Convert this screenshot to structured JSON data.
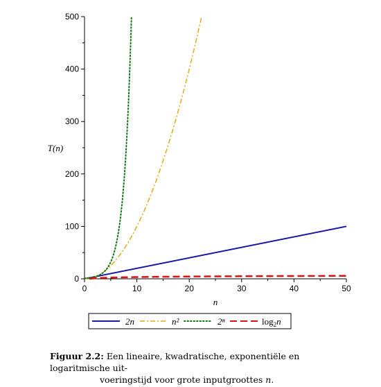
{
  "chart_data": {
    "type": "line",
    "title": "",
    "xlabel": "n",
    "ylabel": "T(n)",
    "xlim": [
      0,
      50
    ],
    "ylim": [
      0,
      500
    ],
    "xticks": [
      0,
      10,
      20,
      30,
      40,
      50
    ],
    "yticks": [
      0,
      100,
      200,
      300,
      400,
      500
    ],
    "grid": false,
    "legend_position": "bottom",
    "series": [
      {
        "name": "2n",
        "formula": "2n",
        "color": "#1a1aaa",
        "style": "solid",
        "x": [
          0,
          50
        ],
        "y": [
          0,
          100
        ]
      },
      {
        "name": "n²",
        "formula": "n^2",
        "color": "#e6a817",
        "style": "dashdot",
        "x": [
          0,
          2.5,
          5,
          7.5,
          10,
          12.5,
          15,
          17.5,
          20,
          22.36
        ],
        "y": [
          0,
          6.25,
          25,
          56.25,
          100,
          156.25,
          225,
          306.25,
          400,
          500
        ]
      },
      {
        "name": "2ⁿ",
        "formula": "2^n",
        "color": "#117711",
        "style": "dotted",
        "x": [
          0,
          1,
          2,
          3,
          4,
          5,
          6,
          7,
          8,
          8.97
        ],
        "y": [
          1,
          2,
          4,
          8,
          16,
          32,
          64,
          128,
          256,
          500
        ]
      },
      {
        "name": "log₂n",
        "formula": "log2(n)",
        "color": "#dd1111",
        "style": "dashed",
        "x": [
          1,
          2,
          4,
          8,
          16,
          25,
          32,
          40,
          50
        ],
        "y": [
          0,
          1,
          2,
          3,
          4,
          4.64,
          5,
          5.32,
          5.64
        ]
      }
    ],
    "legend": {
      "items": [
        {
          "label": "2n"
        },
        {
          "label": "n²"
        },
        {
          "label": "2ⁿ"
        },
        {
          "label_prefix": "log",
          "label_sub": "2",
          "label_suffix": "n"
        }
      ]
    }
  },
  "caption": {
    "figure_number": "Figuur 2.2:",
    "text_line1": "Een lineaire, kwadratische, exponentiële en logaritmische uit-",
    "text_line2_prefix": "voeringstijd voor grote inputgroottes ",
    "text_line2_var": "n",
    "text_line2_suffix": "."
  }
}
